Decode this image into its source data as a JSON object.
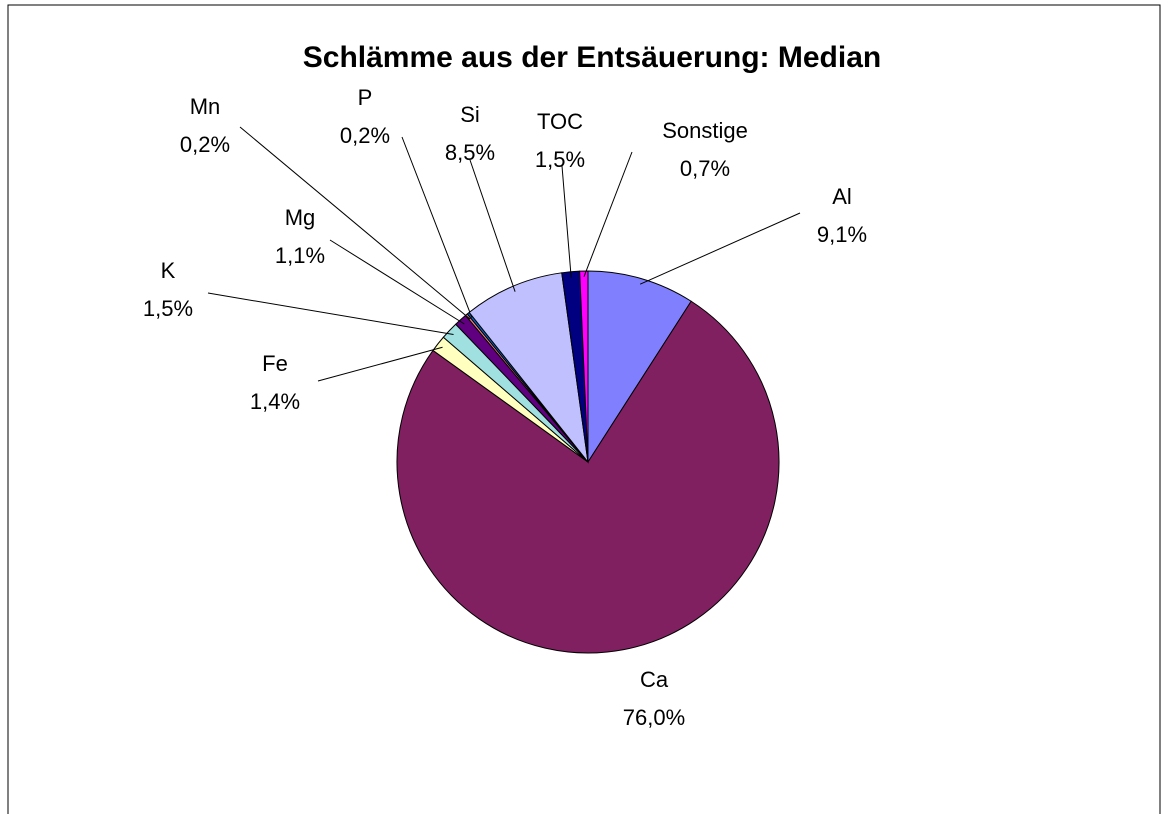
{
  "chart_data": {
    "type": "pie",
    "title": "Schlämme aus der Entsäuerung: Median",
    "categories": [
      "Al",
      "Ca",
      "Fe",
      "K",
      "Mg",
      "Mn",
      "P",
      "Si",
      "TOC",
      "Sonstige"
    ],
    "values": [
      9.1,
      76.0,
      1.4,
      1.5,
      1.1,
      0.2,
      0.2,
      8.5,
      1.5,
      0.7
    ],
    "value_labels": [
      "9,1%",
      "76,0%",
      "1,4%",
      "1,5%",
      "1,1%",
      "0,2%",
      "0,2%",
      "8,5%",
      "1,5%",
      "0,7%"
    ],
    "colors": [
      "#8080ff",
      "#802060",
      "#ffffc0",
      "#a0e0e0",
      "#600080",
      "#ff8080",
      "#0066cc",
      "#c0c0ff",
      "#000080",
      "#ff00ff"
    ]
  }
}
